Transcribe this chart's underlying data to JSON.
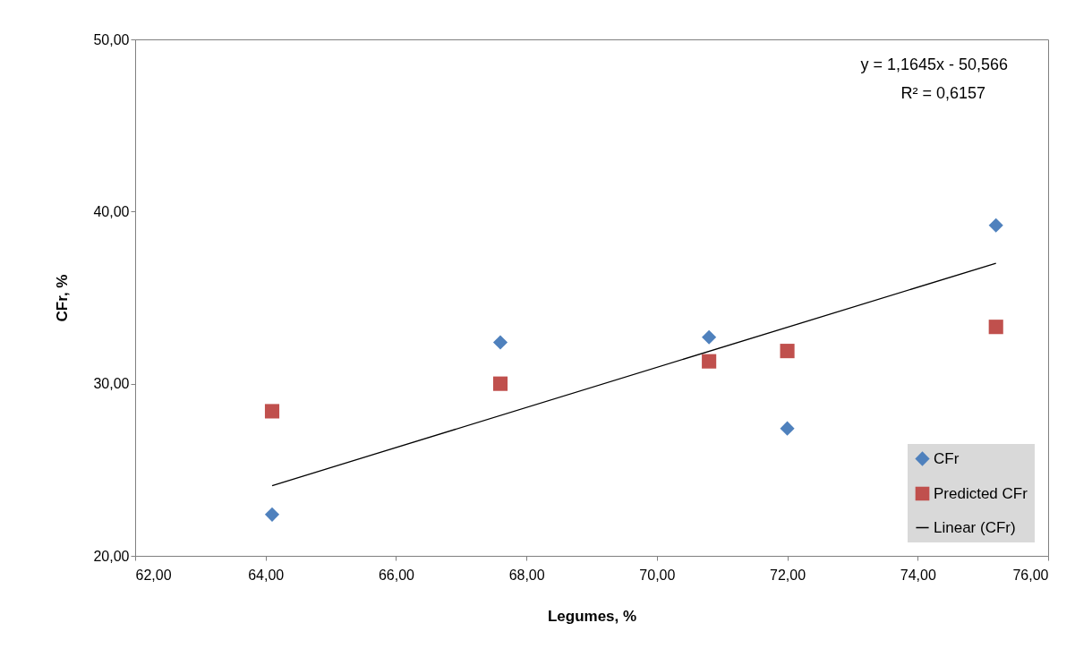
{
  "chart_data": {
    "type": "scatter",
    "xlabel": "Legumes, %",
    "ylabel": "CFr, %",
    "xlim": [
      62,
      76
    ],
    "ylim": [
      20,
      50
    ],
    "xticks": [
      {
        "value": 62,
        "label": "62,00"
      },
      {
        "value": 64,
        "label": "64,00"
      },
      {
        "value": 66,
        "label": "66,00"
      },
      {
        "value": 68,
        "label": "68,00"
      },
      {
        "value": 70,
        "label": "70,00"
      },
      {
        "value": 72,
        "label": "72,00"
      },
      {
        "value": 74,
        "label": "74,00"
      },
      {
        "value": 76,
        "label": "76,00"
      }
    ],
    "yticks": [
      {
        "value": 20,
        "label": "20,00"
      },
      {
        "value": 30,
        "label": "30,00"
      },
      {
        "value": 40,
        "label": "40,00"
      },
      {
        "value": 50,
        "label": "50,00"
      }
    ],
    "grid": false,
    "legend": "bottom right",
    "annotations": [
      "y = 1,1645x - 50,566",
      "R² = 0,6157"
    ],
    "series": [
      {
        "name": "CFr",
        "marker": "diamond",
        "color": "#4f81bd",
        "x": [
          64.1,
          67.6,
          70.8,
          72.0,
          75.2
        ],
        "values": [
          22.4,
          32.4,
          32.7,
          27.4,
          39.2
        ]
      },
      {
        "name": "Predicted CFr",
        "marker": "square",
        "color": "#c0504d",
        "x": [
          64.1,
          67.6,
          70.8,
          72.0,
          75.2
        ],
        "values": [
          28.4,
          30.0,
          31.3,
          31.9,
          33.3
        ]
      },
      {
        "name": "Linear (CFr)",
        "type": "line",
        "color": "#000000",
        "x": [
          64.1,
          75.2
        ],
        "values": [
          24.08,
          37.0
        ]
      }
    ]
  }
}
